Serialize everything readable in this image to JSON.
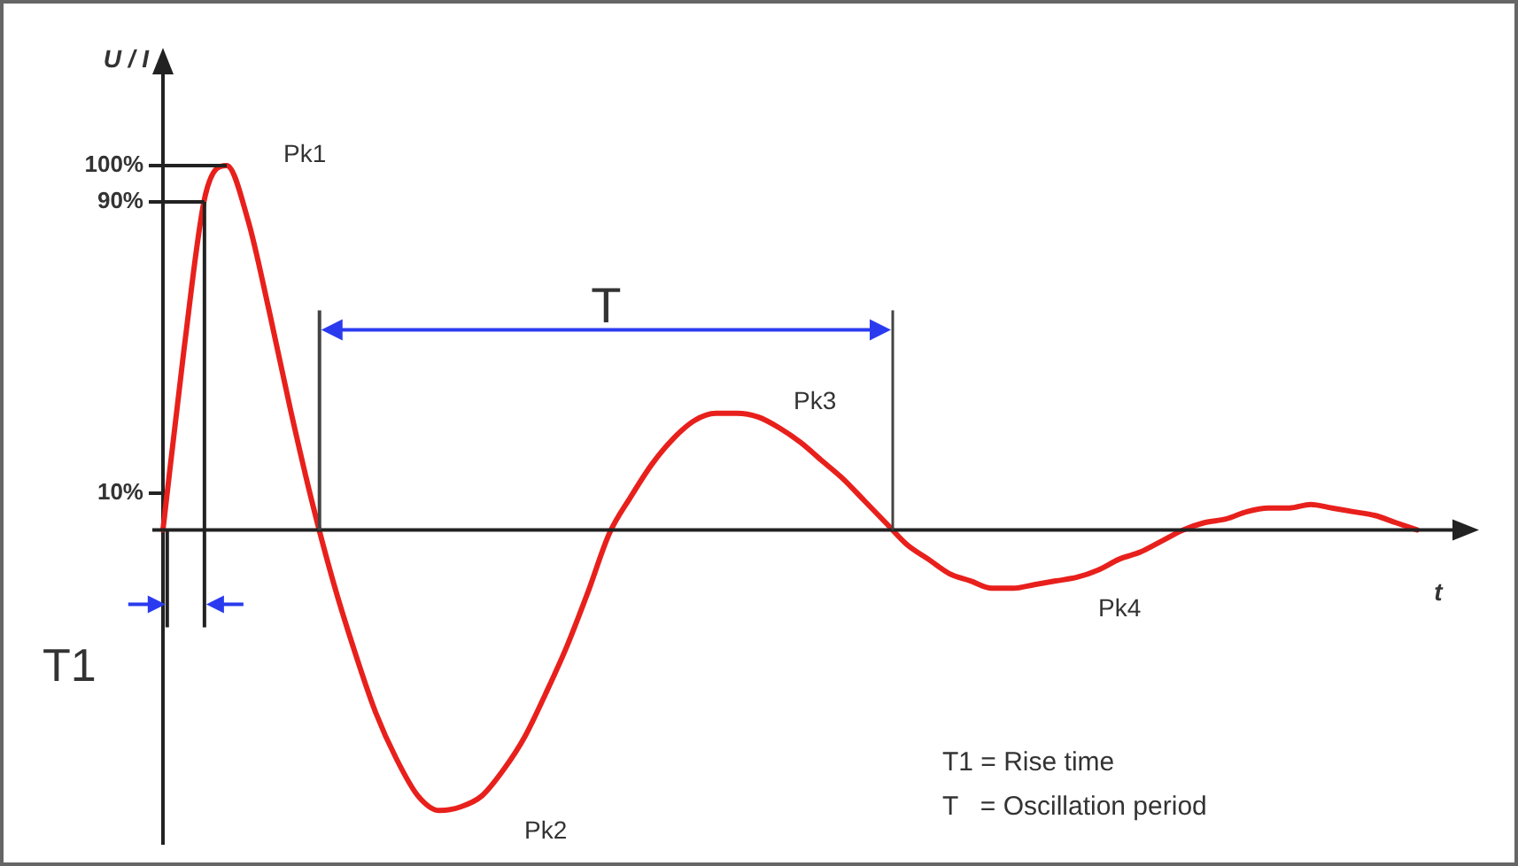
{
  "chart_data": {
    "type": "line",
    "ylabel": "U / I",
    "xlabel": "t",
    "categories": [
      null,
      null,
      null,
      null,
      null,
      null,
      null,
      null,
      null,
      null,
      null,
      null,
      null,
      null,
      null,
      null,
      null,
      null,
      null,
      null,
      null,
      null,
      null,
      null,
      null,
      null,
      null,
      null,
      null,
      null,
      null,
      null,
      null,
      null,
      null,
      null,
      null,
      null,
      null,
      null,
      null,
      null,
      null,
      null,
      null,
      null,
      null,
      null,
      null,
      null,
      null,
      null,
      null,
      null,
      null,
      null,
      null,
      null,
      null,
      null
    ],
    "series": [
      {
        "color": "#e8201c",
        "values": [
          0,
          50,
          92,
          100,
          85,
          60,
          33,
          8,
          -14,
          -33,
          -50,
          -63,
          -73,
          -77,
          -76,
          -73,
          -66,
          -57,
          -45,
          -32,
          -17,
          -1,
          9,
          18,
          25,
          30,
          32,
          32,
          31,
          28,
          24,
          19,
          14,
          8,
          2,
          -4,
          -8,
          -12,
          -14,
          -16,
          -16,
          -15,
          -14,
          -13,
          -11,
          -8,
          -6,
          -3,
          0,
          2,
          3,
          5,
          6,
          6,
          7,
          6,
          5,
          4,
          2,
          0
        ]
      }
    ],
    "ylim": [
      -86,
      125
    ],
    "yticks": [
      {
        "value": 10,
        "label": "10%"
      },
      {
        "value": 90,
        "label": "90%"
      },
      {
        "value": 100,
        "label": "100%"
      }
    ],
    "tick_labels": "y",
    "grid": false,
    "legend": false,
    "marker": "none",
    "line_style": "solid",
    "annotations": [
      "Pk1",
      "Pk2",
      "Pk3",
      "Pk4",
      "T",
      "T1",
      "T1 = Rise time",
      "T   = Oscillation period"
    ]
  }
}
